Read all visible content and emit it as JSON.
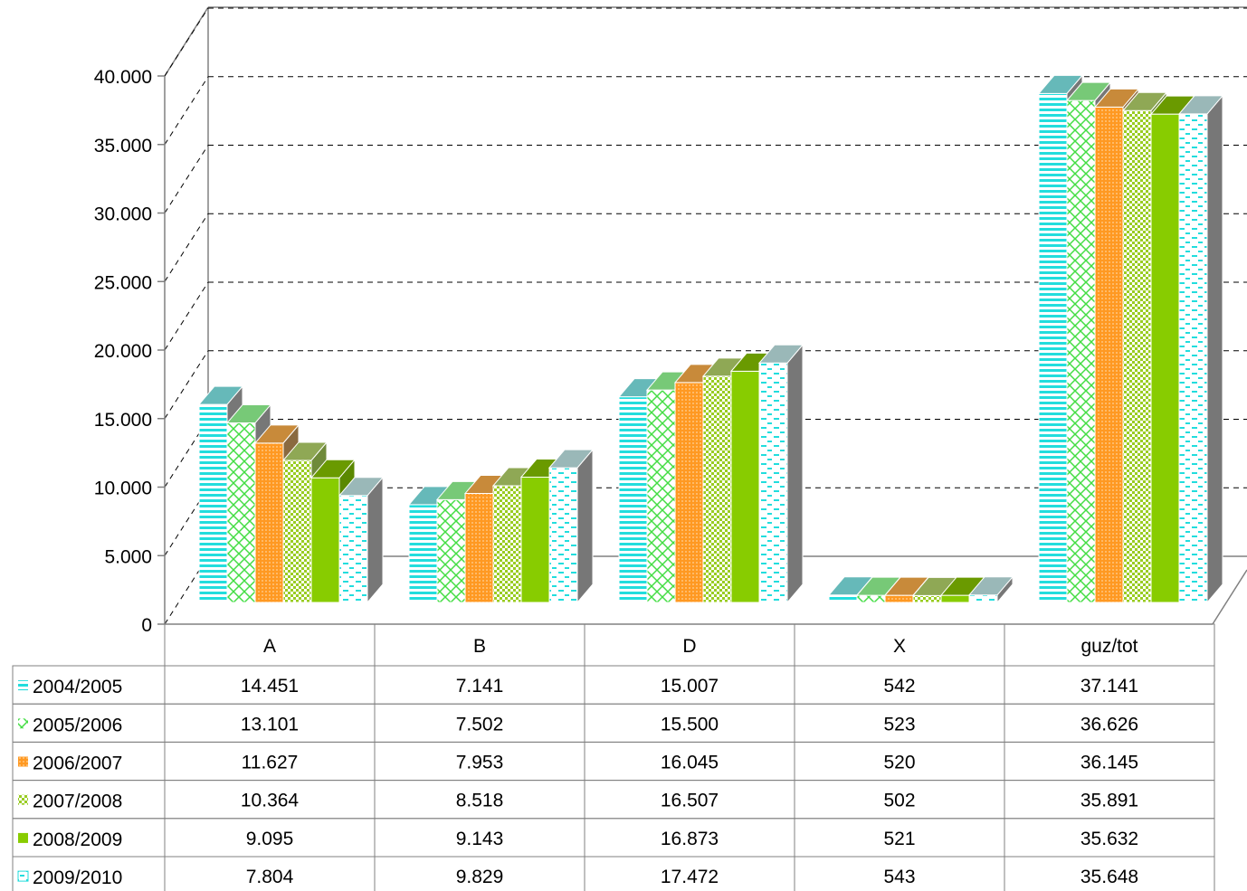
{
  "chart_data": {
    "type": "bar",
    "title": "",
    "xlabel": "",
    "ylabel": "",
    "ylim": [
      0,
      40000
    ],
    "y_ticks": [
      0,
      5000,
      10000,
      15000,
      20000,
      25000,
      30000,
      35000,
      40000
    ],
    "y_tick_labels": [
      "0",
      "5.000",
      "10.000",
      "15.000",
      "20.000",
      "25.000",
      "30.000",
      "35.000",
      "40.000"
    ],
    "grid": "horizontal dashed",
    "legend": "data table below chart",
    "categories": [
      "A",
      "B",
      "D",
      "X",
      "guz/tot"
    ],
    "series": [
      {
        "name": "2004/2005",
        "color": "#22dddd",
        "pattern": "hlines",
        "values": [
          14451,
          7141,
          15007,
          542,
          37141
        ],
        "labels": [
          "14.451",
          "7.141",
          "15.007",
          "542",
          "37.141"
        ]
      },
      {
        "name": "2005/2006",
        "color": "#44dd44",
        "pattern": "crosshatch",
        "values": [
          13101,
          7502,
          15500,
          523,
          36626
        ],
        "labels": [
          "13.101",
          "7.502",
          "15.500",
          "523",
          "36.626"
        ]
      },
      {
        "name": "2006/2007",
        "color": "#ff9922",
        "pattern": "dots",
        "values": [
          11627,
          7953,
          16045,
          520,
          36145
        ],
        "labels": [
          "11.627",
          "7.953",
          "16.045",
          "520",
          "36.145"
        ]
      },
      {
        "name": "2007/2008",
        "color": "#99cc22",
        "pattern": "checker",
        "values": [
          10364,
          8518,
          16507,
          502,
          35891
        ],
        "labels": [
          "10.364",
          "8.518",
          "16.507",
          "502",
          "35.891"
        ]
      },
      {
        "name": "2008/2009",
        "color": "#88cc00",
        "pattern": "solid",
        "values": [
          9095,
          9143,
          16873,
          521,
          35632
        ],
        "labels": [
          "9.095",
          "9.143",
          "16.873",
          "521",
          "35.632"
        ]
      },
      {
        "name": "2009/2010",
        "color": "#22dddd",
        "pattern": "dashes",
        "values": [
          7804,
          9829,
          17472,
          543,
          35648
        ],
        "labels": [
          "7.804",
          "9.829",
          "17.472",
          "543",
          "35.648"
        ]
      }
    ]
  }
}
